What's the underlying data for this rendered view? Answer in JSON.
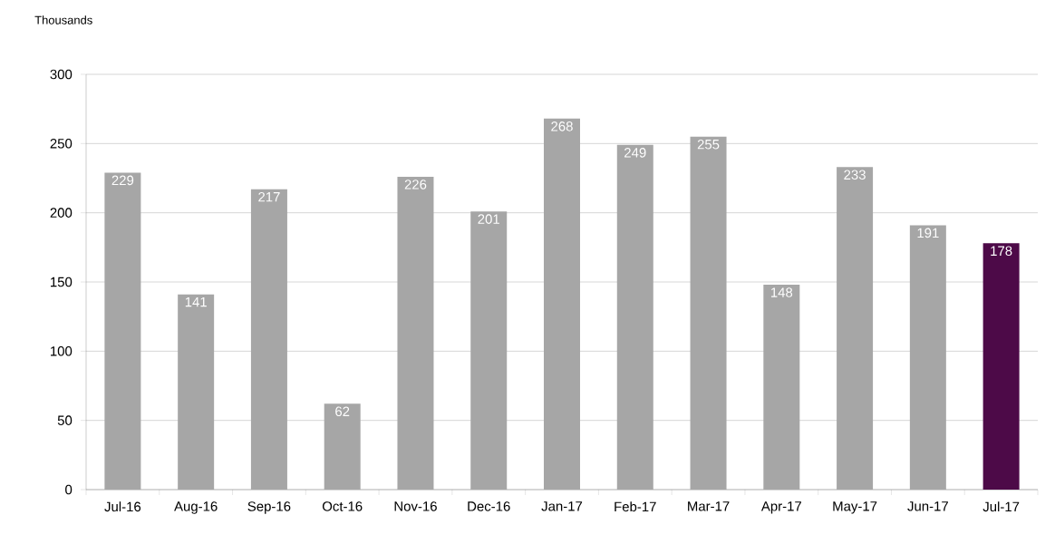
{
  "chart_data": {
    "type": "bar",
    "ylabel": "Thousands",
    "categories": [
      "Jul-16",
      "Aug-16",
      "Sep-16",
      "Oct-16",
      "Nov-16",
      "Dec-16",
      "Jan-17",
      "Feb-17",
      "Mar-17",
      "Apr-17",
      "May-17",
      "Jun-17",
      "Jul-17"
    ],
    "values": [
      229,
      141,
      217,
      62,
      226,
      201,
      268,
      249,
      255,
      148,
      233,
      191,
      178
    ],
    "colors": [
      "#a6a6a6",
      "#a6a6a6",
      "#a6a6a6",
      "#a6a6a6",
      "#a6a6a6",
      "#a6a6a6",
      "#a6a6a6",
      "#a6a6a6",
      "#a6a6a6",
      "#a6a6a6",
      "#a6a6a6",
      "#a6a6a6",
      "#4d0a48"
    ],
    "ylim": [
      0,
      300
    ],
    "yticks": [
      0,
      50,
      100,
      150,
      200,
      250,
      300
    ],
    "grid": "y",
    "data_labels": true
  }
}
